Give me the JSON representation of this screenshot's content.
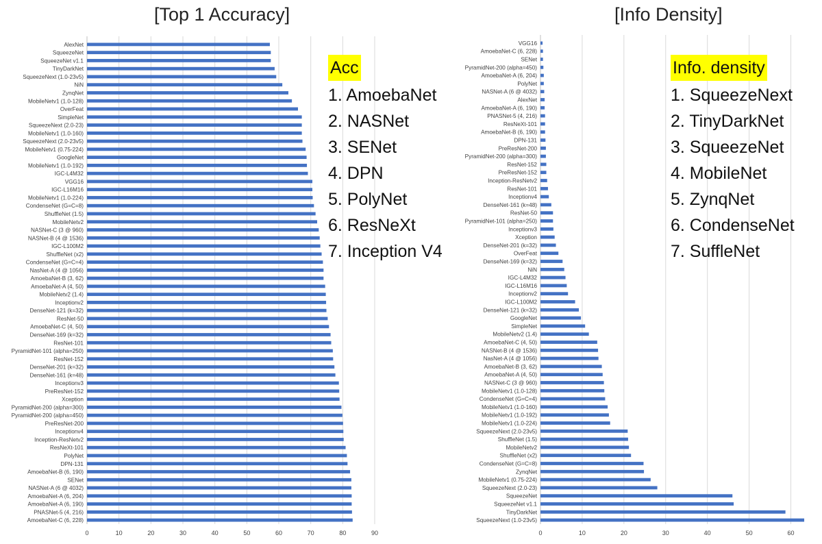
{
  "titles": {
    "left": "[Top 1 Accuracy]",
    "right": "[Info Density]"
  },
  "rankings": {
    "accuracy": {
      "heading": "Acc",
      "items": [
        "1. AmoebaNet",
        "2. NASNet",
        "3. SENet",
        "4. DPN",
        "5. PolyNet",
        "6. ResNeXt",
        "7. Inception V4"
      ]
    },
    "density": {
      "heading": "Info. density",
      "items": [
        "1. SqueezeNext",
        "2. TinyDarkNet",
        "3. SqueezeNet",
        "4. MobileNet",
        "5. ZynqNet",
        "6. CondenseNet",
        "7. SuffleNet"
      ]
    }
  },
  "colors": {
    "bar": "#4472c4",
    "grid": "#d9d9d9",
    "highlight": "#ffff00",
    "label": "#404040"
  },
  "chart_data": [
    {
      "type": "bar",
      "orientation": "horizontal",
      "title": "[Top 1 Accuracy]",
      "xlim": [
        0,
        90
      ],
      "xticks": [
        0,
        10,
        20,
        30,
        40,
        50,
        60,
        70,
        80,
        90
      ],
      "grid": true,
      "categories": [
        "AlexNet",
        "SqueezeNet",
        "SqueezeNet v1.1",
        "TinyDarkNet",
        "SqueezeNext (1.0-23v5)",
        "NiN",
        "ZynqNet",
        "MobileNetv1 (1.0-128)",
        "OverFeat",
        "SimpleNet",
        "SqueezeNext (2.0-23)",
        "MobileNetv1 (1.0-160)",
        "SqueezeNext (2.0-23v5)",
        "MobileNetv1 (0.75-224)",
        "GoogleNet",
        "MobileNetv1 (1.0-192)",
        "IGC-L4M32",
        "VGG16",
        "IGC-L16M16",
        "MobileNetv1 (1.0-224)",
        "CondenseNet (G=C=8)",
        "ShuffleNet (1.5)",
        "MobileNetv2",
        "NASNet-C (3 @ 960)",
        "NASNet-B (4 @ 1536)",
        "IGC-L100M2",
        "ShuffleNet (x2)",
        "CondenseNet (G=C=4)",
        "NasNet-A (4 @ 1056)",
        "AmoebaNet-B (3, 62)",
        "AmoebaNet-A (4, 50)",
        "MobileNetv2 (1.4)",
        "Inceptionv2",
        "DenseNet-121 (k=32)",
        "ResNet-50",
        "AmoebaNet-C (4, 50)",
        "DenseNet-169 (k=32)",
        "ResNet-101",
        "PyramidNet-101 (alpha=250)",
        "ResNet-152",
        "DenseNet-201 (k=32)",
        "DenseNet-161 (k=48)",
        "Inceptionv3",
        "PreResNet-152",
        "Xception",
        "PyramidNet-200 (alpha=300)",
        "PyramidNet-200 (alpha=450)",
        "PreResNet-200",
        "Inceptionv4",
        "Inception-ResNetv2",
        "ResNeXt-101",
        "PolyNet",
        "DPN-131",
        "AmoebaNet-B (6, 190)",
        "SENet",
        "NASNet-A (6 @ 4032)",
        "AmoebaNet-A (6, 204)",
        "AmoebaNet-A (6, 190)",
        "PNASNet-5 (4, 216)",
        "AmoebaNet-C (6, 228)"
      ],
      "values": [
        57.2,
        57.5,
        57.5,
        58.7,
        59.2,
        61.1,
        63.0,
        64.1,
        66.0,
        67.2,
        67.2,
        67.2,
        67.4,
        68.4,
        68.7,
        68.8,
        69.1,
        70.5,
        70.5,
        70.6,
        71.0,
        71.5,
        72.0,
        72.5,
        72.8,
        73.0,
        73.4,
        73.8,
        74.0,
        74.0,
        74.5,
        74.7,
        74.8,
        74.9,
        75.3,
        75.7,
        76.2,
        76.4,
        76.9,
        77.0,
        77.4,
        77.7,
        78.8,
        78.9,
        79.0,
        79.6,
        79.9,
        80.1,
        80.2,
        80.3,
        80.9,
        81.3,
        81.5,
        82.3,
        82.7,
        82.7,
        82.8,
        82.8,
        82.9,
        83.1
      ]
    },
    {
      "type": "bar",
      "orientation": "horizontal",
      "title": "[Info Density]",
      "xlim": [
        0,
        65
      ],
      "xticks": [
        0,
        10,
        20,
        30,
        40,
        50,
        60
      ],
      "grid": true,
      "categories": [
        "VGG16",
        "AmoebaNet-C (6, 228)",
        "SENet",
        "PyramidNet-200 (alpha=450)",
        "AmoebaNet-A (6, 204)",
        "PolyNet",
        "NASNet-A (6 @ 4032)",
        "AlexNet",
        "AmoebaNet-A (6, 190)",
        "PNASNet-5 (4, 216)",
        "ResNeXt-101",
        "AmoebaNet-B (6, 190)",
        "DPN-131",
        "PreResNet-200",
        "PyramidNet-200 (alpha=300)",
        "ResNet-152",
        "PreResNet-152",
        "Inception-ResNetv2",
        "ResNet-101",
        "Inceptionv4",
        "DenseNet-161 (k=48)",
        "ResNet-50",
        "PyramidNet-101 (alpha=250)",
        "Inceptionv3",
        "Xception",
        "DenseNet-201 (k=32)",
        "OverFeat",
        "DenseNet-169 (k=32)",
        "NiN",
        "IGC-L4M32",
        "IGC-L16M16",
        "Inceptionv2",
        "IGC-L100M2",
        "DenseNet-121 (k=32)",
        "GoogleNet",
        "SimpleNet",
        "MobileNetv2 (1.4)",
        "AmoebaNet-C (4, 50)",
        "NASNet-B (4 @ 1536)",
        "NasNet-A (4 @ 1056)",
        "AmoebaNet-B (3, 62)",
        "AmoebaNet-A (4, 50)",
        "NASNet-C (3 @ 960)",
        "MobileNetv1 (1.0-128)",
        "CondenseNet (G=C=4)",
        "MobileNetv1 (1.0-160)",
        "MobileNetv1 (1.0-192)",
        "MobileNetv1 (1.0-224)",
        "SqueezeNext (2.0-23v5)",
        "ShuffleNet (1.5)",
        "MobileNetv2",
        "ShuffleNet (x2)",
        "CondenseNet (G=C=8)",
        "ZynqNet",
        "MobileNetv1 (0.75-224)",
        "SqueezeNext (2.0-23)",
        "SqueezeNet",
        "SqueezeNet v1.1",
        "TinyDarkNet",
        "SqueezeNext (1.0-23v5)"
      ],
      "values": [
        0.5,
        0.6,
        0.6,
        0.7,
        0.8,
        0.8,
        0.9,
        1.0,
        1.0,
        1.1,
        1.1,
        1.1,
        1.2,
        1.3,
        1.3,
        1.4,
        1.4,
        1.6,
        1.8,
        2.0,
        2.6,
        3.0,
        3.0,
        3.1,
        3.4,
        3.7,
        4.3,
        5.3,
        5.7,
        6.0,
        6.3,
        6.6,
        8.3,
        9.2,
        9.7,
        10.7,
        11.6,
        13.6,
        13.8,
        13.9,
        14.7,
        14.9,
        15.2,
        15.3,
        15.5,
        16.1,
        16.4,
        16.7,
        20.9,
        21.0,
        21.2,
        21.7,
        24.7,
        24.8,
        26.4,
        28.0,
        46.0,
        46.3,
        58.7,
        63.2
      ]
    }
  ]
}
